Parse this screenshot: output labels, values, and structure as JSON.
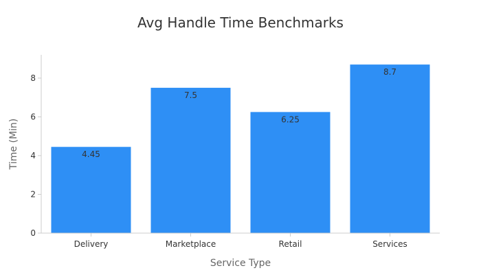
{
  "chart_data": {
    "type": "bar",
    "title": "Avg Handle Time Benchmarks",
    "xlabel": "Service Type",
    "ylabel": "Time (Min)",
    "categories": [
      "Delivery",
      "Marketplace",
      "Retail",
      "Services"
    ],
    "values": [
      4.45,
      7.5,
      6.25,
      8.7
    ],
    "data_labels": [
      "4.45",
      "7.5",
      "6.25",
      "8.7"
    ],
    "ylim": [
      0,
      9.2
    ],
    "yticks": [
      0,
      2,
      4,
      6,
      8
    ],
    "grid": false,
    "legend": "none",
    "colors": {
      "bar": "#2e8ff5",
      "axis": "#cccccc",
      "text": "#333333",
      "muted_text": "#666666"
    }
  }
}
